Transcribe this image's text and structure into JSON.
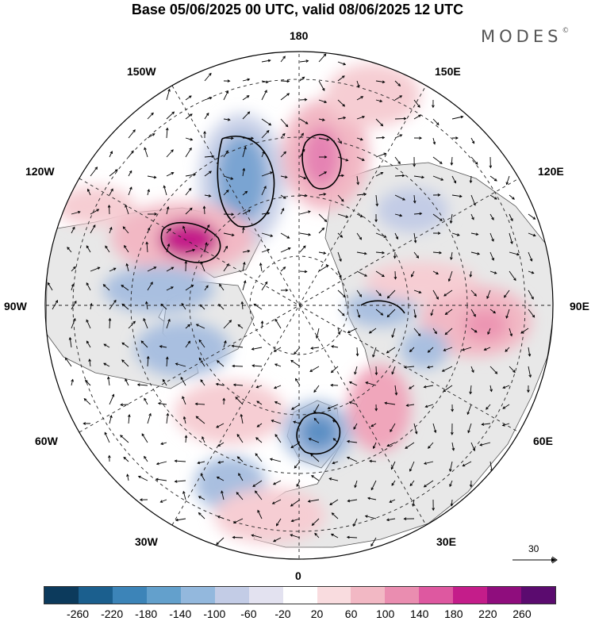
{
  "title": "Base 05/06/2025 00 UTC, valid 08/06/2025 12 UTC",
  "brand": "MODES",
  "brand_mark": "©",
  "longitude_labels": {
    "lon_180": "180",
    "lon_150w": "150W",
    "lon_150e": "150E",
    "lon_120w": "120W",
    "lon_120e": "120E",
    "lon_90w": "90W",
    "lon_90e": "90E",
    "lon_60w": "60W",
    "lon_60e": "60E",
    "lon_30w": "30W",
    "lon_30e": "30E",
    "lon_0": "0"
  },
  "reference_vector": "30",
  "colorbar": {
    "colors": [
      "#0c3a5c",
      "#1b5f8e",
      "#3c84b8",
      "#63a0cc",
      "#93b8dd",
      "#c3cce6",
      "#e3e2f0",
      "#ffffff",
      "#f9dcdf",
      "#f2b8c4",
      "#ea8db0",
      "#de58a0",
      "#c41d8a",
      "#8f0d7d",
      "#5b0b6f"
    ],
    "ticks": [
      "-260",
      "-220",
      "-180",
      "-140",
      "-100",
      "-60",
      "-20",
      "20",
      "60",
      "100",
      "140",
      "180",
      "220",
      "260"
    ]
  },
  "anomaly_centers": [
    {
      "name": "north-pacific-low",
      "color": "#7aa4d2",
      "strength": "strong"
    },
    {
      "name": "chukchi-high",
      "color": "#e583b3",
      "strength": "strong"
    },
    {
      "name": "alaska-high",
      "color": "#c41d8a",
      "strength": "very-strong"
    },
    {
      "name": "canada-low",
      "color": "#8fb0d8",
      "strength": "moderate"
    },
    {
      "name": "hudson-low",
      "color": "#93b8dd",
      "strength": "moderate"
    },
    {
      "name": "scandinavia-low",
      "color": "#5c8fc4",
      "strength": "strong"
    },
    {
      "name": "west-siberia-high",
      "color": "#ee9fb8",
      "strength": "moderate"
    },
    {
      "name": "central-siberia-high",
      "color": "#ef9cb2",
      "strength": "moderate"
    },
    {
      "name": "atlantic-low",
      "color": "#93b8dd",
      "strength": "moderate"
    }
  ]
}
